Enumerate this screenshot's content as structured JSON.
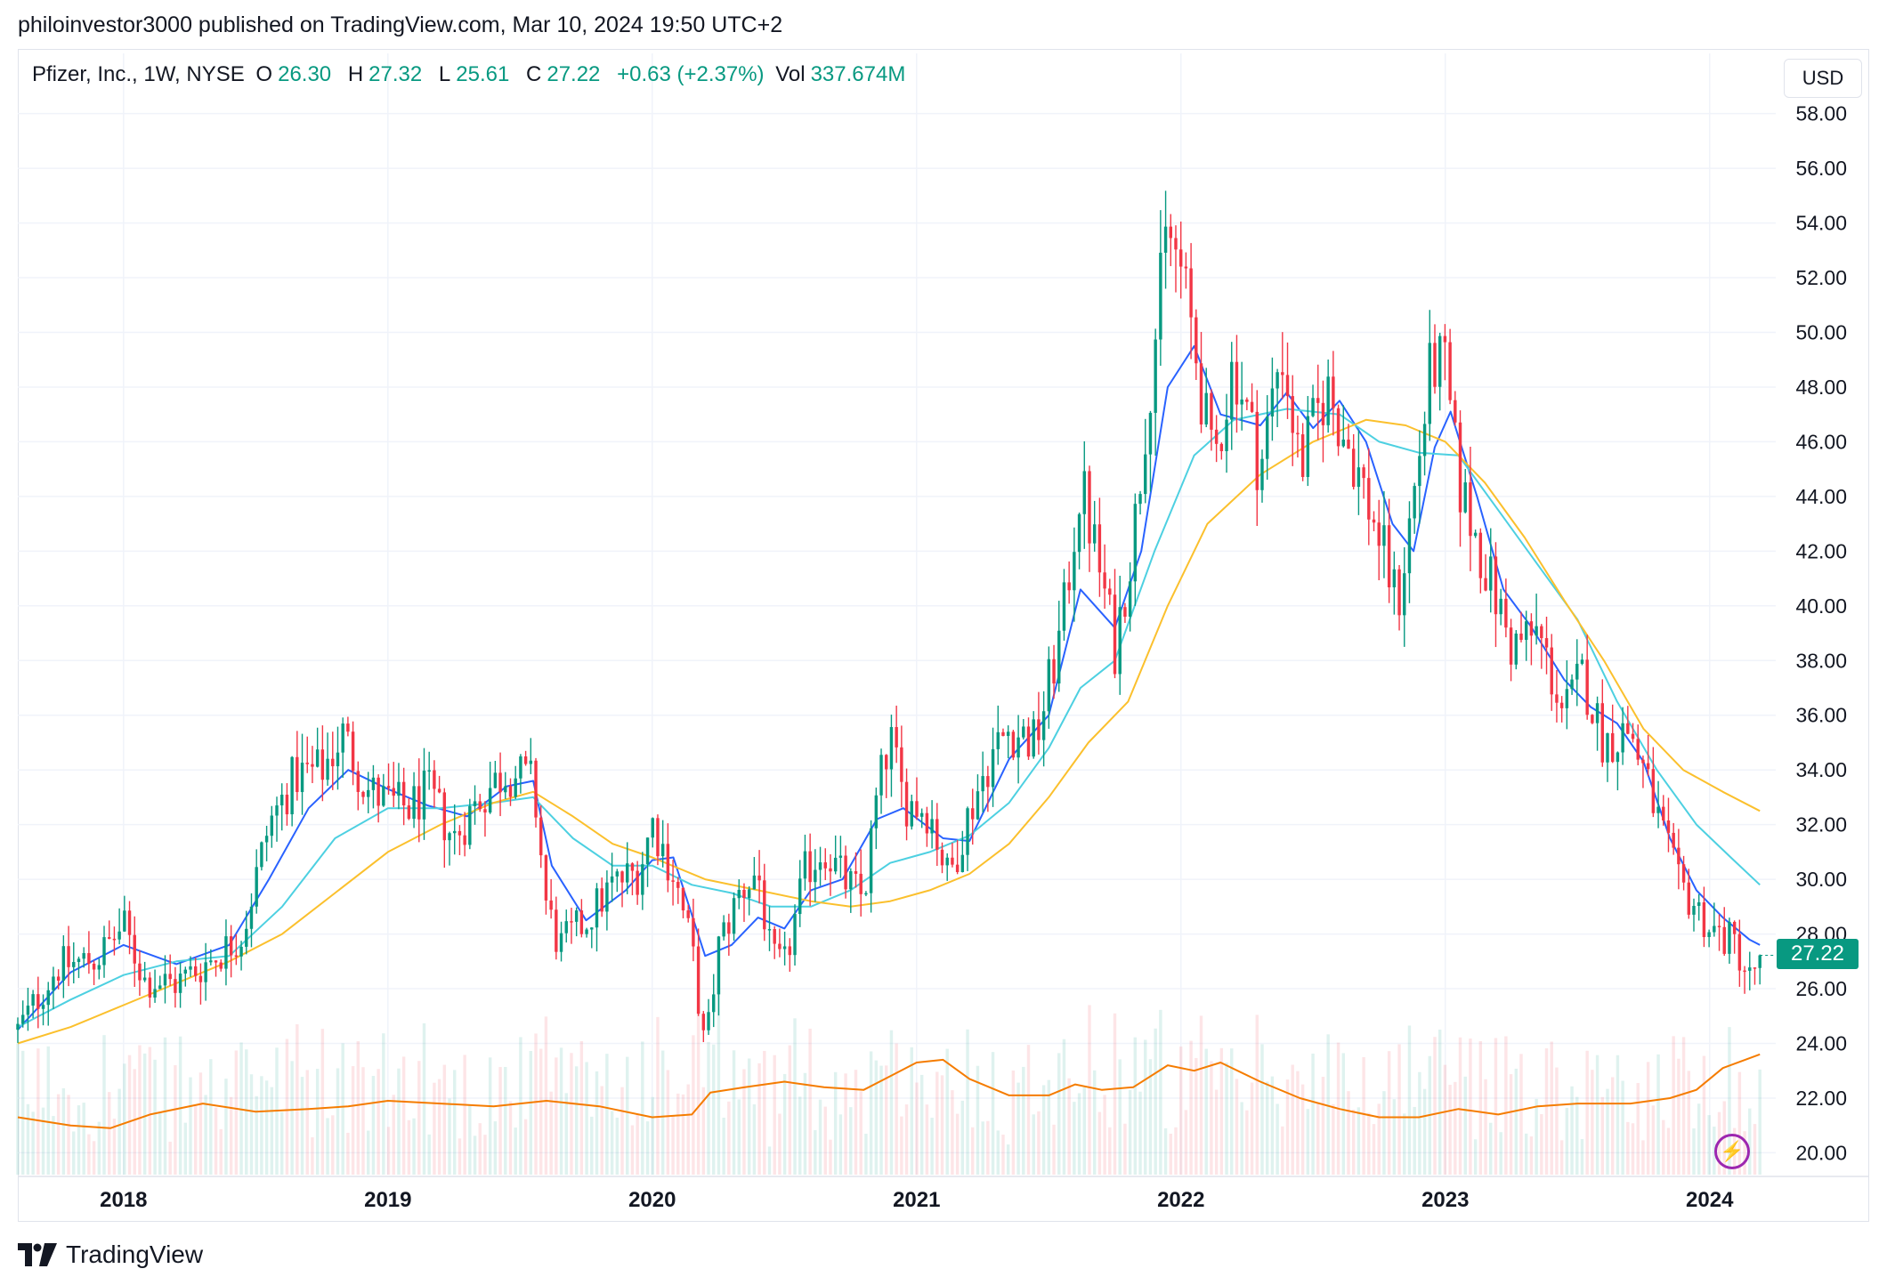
{
  "header": {
    "publisher_line": "philoinvestor3000 published on TradingView.com, Mar 10, 2024 19:50 UTC+2"
  },
  "legend": {
    "symbol": "Pfizer, Inc., 1W, NYSE",
    "open_label": "O",
    "open_value": "26.30",
    "high_label": "H",
    "high_value": "27.32",
    "low_label": "L",
    "low_value": "25.61",
    "close_label": "C",
    "close_value": "27.22",
    "change": "+0.63 (+2.37%)",
    "vol_label": "Vol",
    "vol_value": "337.674M"
  },
  "currency_button": "USD",
  "last_price_tag": "27.22",
  "footer": {
    "brand": "TradingView"
  },
  "colors": {
    "up": "#089981",
    "down": "#f23645",
    "ma_fast": "#2962ff",
    "ma_mid": "#4dd0e1",
    "ma_slow": "#fbc02d",
    "volume_ma": "#f57c00",
    "bolt": "#9c27b0"
  },
  "icons": [
    "tradingview-logo-icon",
    "lightning-bolt-icon"
  ],
  "chart_data": {
    "type": "candlestick",
    "instrument": "Pfizer, Inc.",
    "interval": "1W",
    "exchange": "NYSE",
    "currency": "USD",
    "y_ticks": [
      "20.00",
      "22.00",
      "24.00",
      "26.00",
      "28.00",
      "30.00",
      "32.00",
      "34.00",
      "36.00",
      "38.00",
      "40.00",
      "42.00",
      "44.00",
      "46.00",
      "48.00",
      "50.00",
      "52.00",
      "54.00",
      "56.00",
      "58.00"
    ],
    "ylim": [
      19.2,
      58.9
    ],
    "x_ticks": [
      "2018",
      "2019",
      "2020",
      "2021",
      "2022",
      "2023",
      "2024"
    ],
    "xlim": [
      2017.6,
      2024.25
    ],
    "grid": true,
    "price_path": [
      [
        2017.6,
        24.5
      ],
      [
        2017.75,
        26.8
      ],
      [
        2017.9,
        27.1
      ],
      [
        2018.0,
        28.3
      ],
      [
        2018.08,
        26.3
      ],
      [
        2018.2,
        26.2
      ],
      [
        2018.35,
        27.2
      ],
      [
        2018.45,
        28.0
      ],
      [
        2018.55,
        32.0
      ],
      [
        2018.65,
        33.8
      ],
      [
        2018.75,
        34.0
      ],
      [
        2018.83,
        35.3
      ],
      [
        2018.92,
        33.3
      ],
      [
        2019.0,
        32.8
      ],
      [
        2019.08,
        32.6
      ],
      [
        2019.15,
        33.2
      ],
      [
        2019.25,
        31.5
      ],
      [
        2019.35,
        33.0
      ],
      [
        2019.45,
        34.0
      ],
      [
        2019.55,
        33.5
      ],
      [
        2019.6,
        29.0
      ],
      [
        2019.65,
        27.5
      ],
      [
        2019.75,
        28.5
      ],
      [
        2019.85,
        29.8
      ],
      [
        2019.95,
        30.3
      ],
      [
        2020.0,
        32.1
      ],
      [
        2020.08,
        30.2
      ],
      [
        2020.15,
        27.5
      ],
      [
        2020.2,
        23.6
      ],
      [
        2020.25,
        27.5
      ],
      [
        2020.33,
        29.5
      ],
      [
        2020.4,
        30.3
      ],
      [
        2020.45,
        27.0
      ],
      [
        2020.5,
        26.8
      ],
      [
        2020.58,
        30.3
      ],
      [
        2020.65,
        31.2
      ],
      [
        2020.72,
        30.0
      ],
      [
        2020.8,
        29.3
      ],
      [
        2020.85,
        33.0
      ],
      [
        2020.9,
        35.2
      ],
      [
        2020.95,
        32.9
      ],
      [
        2021.05,
        32.5
      ],
      [
        2021.12,
        30.0
      ],
      [
        2021.2,
        32.5
      ],
      [
        2021.28,
        34.5
      ],
      [
        2021.35,
        35.5
      ],
      [
        2021.45,
        35.0
      ],
      [
        2021.55,
        39.2
      ],
      [
        2021.62,
        44.5
      ],
      [
        2021.7,
        41.0
      ],
      [
        2021.75,
        38.5
      ],
      [
        2021.82,
        42.5
      ],
      [
        2021.88,
        48.0
      ],
      [
        2021.95,
        53.8
      ],
      [
        2022.0,
        52.2
      ],
      [
        2022.05,
        49.6
      ],
      [
        2022.12,
        45.0
      ],
      [
        2022.2,
        49.0
      ],
      [
        2022.3,
        45.0
      ],
      [
        2022.38,
        49.5
      ],
      [
        2022.45,
        45.0
      ],
      [
        2022.55,
        48.0
      ],
      [
        2022.65,
        45.5
      ],
      [
        2022.75,
        42.5
      ],
      [
        2022.82,
        40.0
      ],
      [
        2022.88,
        44.0
      ],
      [
        2022.95,
        49.0
      ],
      [
        2023.0,
        48.5
      ],
      [
        2023.05,
        44.5
      ],
      [
        2023.15,
        41.5
      ],
      [
        2023.25,
        38.5
      ],
      [
        2023.35,
        39.0
      ],
      [
        2023.45,
        36.0
      ],
      [
        2023.52,
        37.5
      ],
      [
        2023.6,
        35.0
      ],
      [
        2023.7,
        35.5
      ],
      [
        2023.78,
        33.0
      ],
      [
        2023.88,
        29.8
      ],
      [
        2023.95,
        29.0
      ],
      [
        2024.0,
        28.2
      ],
      [
        2024.1,
        27.6
      ],
      [
        2024.15,
        26.3
      ],
      [
        2024.19,
        27.22
      ]
    ],
    "series": [
      {
        "name": "",
        "color": "#2962ff",
        "values": [
          [
            2017.6,
            24.5
          ],
          [
            2017.8,
            26.6
          ],
          [
            2018.0,
            27.6
          ],
          [
            2018.2,
            26.9
          ],
          [
            2018.4,
            27.6
          ],
          [
            2018.55,
            30.0
          ],
          [
            2018.7,
            32.6
          ],
          [
            2018.85,
            34.0
          ],
          [
            2019.0,
            33.3
          ],
          [
            2019.15,
            32.7
          ],
          [
            2019.3,
            32.3
          ],
          [
            2019.45,
            33.4
          ],
          [
            2019.55,
            33.6
          ],
          [
            2019.62,
            30.5
          ],
          [
            2019.75,
            28.5
          ],
          [
            2019.9,
            29.6
          ],
          [
            2020.0,
            30.7
          ],
          [
            2020.08,
            30.8
          ],
          [
            2020.2,
            27.2
          ],
          [
            2020.3,
            27.6
          ],
          [
            2020.4,
            28.6
          ],
          [
            2020.5,
            28.2
          ],
          [
            2020.6,
            29.6
          ],
          [
            2020.72,
            30.0
          ],
          [
            2020.85,
            32.2
          ],
          [
            2020.95,
            32.6
          ],
          [
            2021.1,
            31.5
          ],
          [
            2021.2,
            31.4
          ],
          [
            2021.35,
            34.4
          ],
          [
            2021.5,
            36.0
          ],
          [
            2021.62,
            40.6
          ],
          [
            2021.75,
            39.2
          ],
          [
            2021.85,
            42.0
          ],
          [
            2021.95,
            48.0
          ],
          [
            2022.05,
            49.5
          ],
          [
            2022.15,
            47.0
          ],
          [
            2022.3,
            46.6
          ],
          [
            2022.4,
            47.8
          ],
          [
            2022.5,
            46.5
          ],
          [
            2022.6,
            47.5
          ],
          [
            2022.7,
            46.0
          ],
          [
            2022.8,
            43.0
          ],
          [
            2022.88,
            42.0
          ],
          [
            2022.96,
            45.8
          ],
          [
            2023.02,
            47.1
          ],
          [
            2023.12,
            44.0
          ],
          [
            2023.22,
            40.6
          ],
          [
            2023.32,
            39.3
          ],
          [
            2023.45,
            37.3
          ],
          [
            2023.55,
            36.3
          ],
          [
            2023.65,
            35.7
          ],
          [
            2023.75,
            34.3
          ],
          [
            2023.85,
            31.5
          ],
          [
            2023.95,
            29.6
          ],
          [
            2024.05,
            28.6
          ],
          [
            2024.15,
            27.8
          ],
          [
            2024.19,
            27.6
          ]
        ]
      },
      {
        "name": "",
        "color": "#4dd0e1",
        "values": [
          [
            2017.6,
            24.6
          ],
          [
            2017.8,
            25.6
          ],
          [
            2018.0,
            26.5
          ],
          [
            2018.2,
            27.0
          ],
          [
            2018.4,
            27.2
          ],
          [
            2018.6,
            29.0
          ],
          [
            2018.8,
            31.5
          ],
          [
            2019.0,
            32.6
          ],
          [
            2019.2,
            32.6
          ],
          [
            2019.4,
            32.8
          ],
          [
            2019.55,
            33.0
          ],
          [
            2019.7,
            31.5
          ],
          [
            2019.85,
            30.5
          ],
          [
            2020.0,
            30.5
          ],
          [
            2020.15,
            29.8
          ],
          [
            2020.3,
            29.5
          ],
          [
            2020.45,
            29.0
          ],
          [
            2020.6,
            29.0
          ],
          [
            2020.75,
            29.6
          ],
          [
            2020.9,
            30.6
          ],
          [
            2021.05,
            31.0
          ],
          [
            2021.2,
            31.6
          ],
          [
            2021.35,
            32.8
          ],
          [
            2021.5,
            34.8
          ],
          [
            2021.62,
            37.0
          ],
          [
            2021.75,
            38.0
          ],
          [
            2021.9,
            42.0
          ],
          [
            2022.05,
            45.5
          ],
          [
            2022.2,
            46.8
          ],
          [
            2022.4,
            47.2
          ],
          [
            2022.6,
            47.0
          ],
          [
            2022.75,
            46.0
          ],
          [
            2022.9,
            45.6
          ],
          [
            2023.05,
            45.5
          ],
          [
            2023.2,
            43.5
          ],
          [
            2023.35,
            41.5
          ],
          [
            2023.5,
            39.5
          ],
          [
            2023.65,
            36.5
          ],
          [
            2023.8,
            34.0
          ],
          [
            2023.95,
            32.0
          ],
          [
            2024.08,
            30.8
          ],
          [
            2024.19,
            29.8
          ]
        ]
      },
      {
        "name": "",
        "color": "#fbc02d",
        "values": [
          [
            2017.6,
            24.0
          ],
          [
            2017.8,
            24.6
          ],
          [
            2018.0,
            25.4
          ],
          [
            2018.2,
            26.2
          ],
          [
            2018.4,
            27.0
          ],
          [
            2018.6,
            28.0
          ],
          [
            2018.8,
            29.5
          ],
          [
            2019.0,
            31.0
          ],
          [
            2019.2,
            32.0
          ],
          [
            2019.4,
            32.8
          ],
          [
            2019.55,
            33.2
          ],
          [
            2019.7,
            32.3
          ],
          [
            2019.85,
            31.3
          ],
          [
            2020.0,
            30.8
          ],
          [
            2020.2,
            30.0
          ],
          [
            2020.4,
            29.6
          ],
          [
            2020.6,
            29.2
          ],
          [
            2020.75,
            29.0
          ],
          [
            2020.9,
            29.2
          ],
          [
            2021.05,
            29.6
          ],
          [
            2021.2,
            30.2
          ],
          [
            2021.35,
            31.3
          ],
          [
            2021.5,
            33.0
          ],
          [
            2021.65,
            35.0
          ],
          [
            2021.8,
            36.5
          ],
          [
            2021.95,
            40.0
          ],
          [
            2022.1,
            43.0
          ],
          [
            2022.3,
            44.8
          ],
          [
            2022.5,
            46.0
          ],
          [
            2022.7,
            46.8
          ],
          [
            2022.85,
            46.6
          ],
          [
            2023.0,
            46.0
          ],
          [
            2023.15,
            44.5
          ],
          [
            2023.3,
            42.5
          ],
          [
            2023.45,
            40.2
          ],
          [
            2023.6,
            38.0
          ],
          [
            2023.75,
            35.5
          ],
          [
            2023.9,
            34.0
          ],
          [
            2024.05,
            33.2
          ],
          [
            2024.19,
            32.5
          ]
        ]
      },
      {
        "name": "",
        "color": "#f57c00",
        "values": [
          [
            2017.6,
            21.3
          ],
          [
            2017.8,
            21.0
          ],
          [
            2017.95,
            20.9
          ],
          [
            2018.1,
            21.4
          ],
          [
            2018.3,
            21.8
          ],
          [
            2018.5,
            21.5
          ],
          [
            2018.7,
            21.6
          ],
          [
            2018.85,
            21.7
          ],
          [
            2019.0,
            21.9
          ],
          [
            2019.2,
            21.8
          ],
          [
            2019.4,
            21.7
          ],
          [
            2019.6,
            21.9
          ],
          [
            2019.8,
            21.7
          ],
          [
            2020.0,
            21.3
          ],
          [
            2020.15,
            21.4
          ],
          [
            2020.22,
            22.2
          ],
          [
            2020.35,
            22.4
          ],
          [
            2020.5,
            22.6
          ],
          [
            2020.65,
            22.4
          ],
          [
            2020.8,
            22.3
          ],
          [
            2020.9,
            22.8
          ],
          [
            2021.0,
            23.3
          ],
          [
            2021.1,
            23.4
          ],
          [
            2021.2,
            22.7
          ],
          [
            2021.35,
            22.1
          ],
          [
            2021.5,
            22.1
          ],
          [
            2021.6,
            22.5
          ],
          [
            2021.7,
            22.3
          ],
          [
            2021.82,
            22.4
          ],
          [
            2021.95,
            23.2
          ],
          [
            2022.05,
            23.0
          ],
          [
            2022.15,
            23.3
          ],
          [
            2022.3,
            22.6
          ],
          [
            2022.45,
            22.0
          ],
          [
            2022.6,
            21.6
          ],
          [
            2022.75,
            21.3
          ],
          [
            2022.9,
            21.3
          ],
          [
            2023.05,
            21.6
          ],
          [
            2023.2,
            21.4
          ],
          [
            2023.35,
            21.7
          ],
          [
            2023.5,
            21.8
          ],
          [
            2023.7,
            21.8
          ],
          [
            2023.85,
            22.0
          ],
          [
            2023.95,
            22.3
          ],
          [
            2024.05,
            23.1
          ],
          [
            2024.19,
            23.6
          ]
        ]
      }
    ]
  }
}
